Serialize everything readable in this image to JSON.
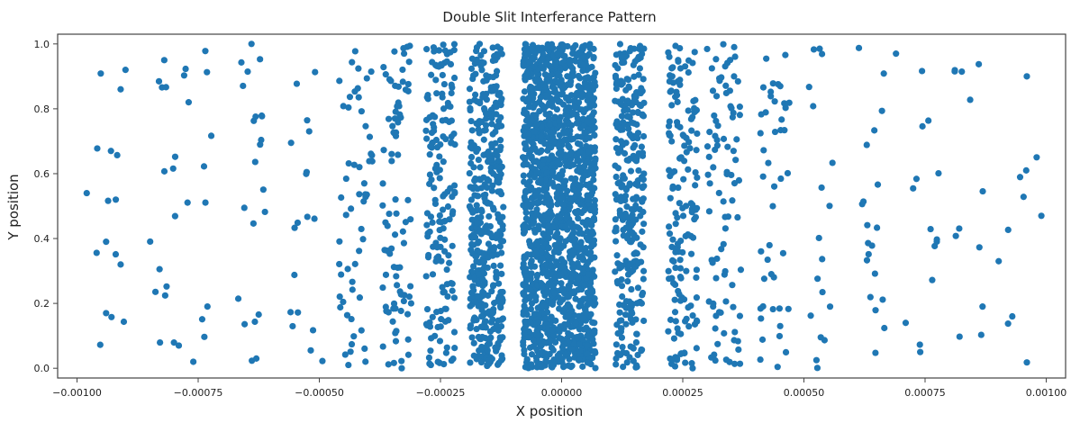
{
  "chart_data": {
    "type": "scatter",
    "title": "Double Slit Interferance Pattern",
    "xlabel": "X position",
    "ylabel": "Y position",
    "xlim": [
      -0.00104,
      0.00104
    ],
    "ylim": [
      -0.03,
      1.03
    ],
    "x_ticks": [
      -0.001,
      -0.00075,
      -0.0005,
      -0.00025,
      0.0,
      0.00025,
      0.0005,
      0.00075,
      0.001
    ],
    "x_tick_labels": [
      "−0.00100",
      "−0.00075",
      "−0.00050",
      "−0.00025",
      "0.00000",
      "0.00025",
      "0.00050",
      "0.00075",
      "0.00100"
    ],
    "y_ticks": [
      0.0,
      0.2,
      0.4,
      0.6,
      0.8,
      1.0
    ],
    "y_tick_labels": [
      "0.0",
      "0.2",
      "0.4",
      "0.6",
      "0.8",
      "1.0"
    ],
    "grid": false,
    "legend": "none",
    "series": [
      {
        "color": "#1f77b4",
        "bands": [
          {
            "x_min": -8e-05,
            "x_max": 7e-05,
            "count": 1500
          },
          {
            "x_min": -0.00019,
            "x_max": -0.00012,
            "count": 420
          },
          {
            "x_min": 0.00011,
            "x_max": 0.00017,
            "count": 300
          },
          {
            "x_min": -0.00028,
            "x_max": -0.00022,
            "count": 170
          },
          {
            "x_min": 0.00022,
            "x_max": 0.00028,
            "count": 160
          },
          {
            "x_min": -0.00037,
            "x_max": -0.00031,
            "count": 85
          },
          {
            "x_min": 0.0003,
            "x_max": 0.00037,
            "count": 90
          },
          {
            "x_min": -0.00046,
            "x_max": -0.00039,
            "count": 55
          },
          {
            "x_min": 0.00041,
            "x_max": 0.00047,
            "count": 45
          },
          {
            "x_min": -0.00056,
            "x_max": -0.00049,
            "count": 18
          },
          {
            "x_min": 0.00051,
            "x_max": 0.00056,
            "count": 18
          },
          {
            "x_min": -0.00067,
            "x_max": -0.00061,
            "count": 20
          },
          {
            "x_min": 0.00061,
            "x_max": 0.00067,
            "count": 20
          },
          {
            "x_min": -0.00078,
            "x_max": -0.00071,
            "count": 12
          },
          {
            "x_min": 0.00071,
            "x_max": 0.00078,
            "count": 12
          },
          {
            "x_min": -0.00085,
            "x_max": -0.00079,
            "count": 14
          },
          {
            "x_min": 0.00081,
            "x_max": 0.00087,
            "count": 12
          },
          {
            "x_min": -0.00096,
            "x_max": -0.00089,
            "count": 9
          },
          {
            "x_min": 0.0009,
            "x_max": 0.00099,
            "count": 8
          }
        ],
        "points": [
          {
            "x": -0.00098,
            "y": 0.54
          },
          {
            "x": -0.00094,
            "y": 0.39
          },
          {
            "x": -0.00094,
            "y": 0.17
          },
          {
            "x": -0.00093,
            "y": 0.67
          },
          {
            "x": -0.00092,
            "y": 0.52
          },
          {
            "x": -0.00091,
            "y": 0.32
          },
          {
            "x": -0.00091,
            "y": 0.86
          },
          {
            "x": -0.0009,
            "y": 0.92
          },
          {
            "x": -0.00082,
            "y": 0.95
          },
          {
            "x": -0.00079,
            "y": 0.07
          },
          {
            "x": -0.00076,
            "y": 0.02
          },
          {
            "x": 0.00093,
            "y": 0.16
          },
          {
            "x": 0.00096,
            "y": 0.9
          },
          {
            "x": 0.00099,
            "y": 0.47
          },
          {
            "x": 0.00074,
            "y": 0.05
          },
          {
            "x": 0.00071,
            "y": 0.14
          },
          {
            "x": 0.00069,
            "y": 0.97
          },
          {
            "x": -0.00064,
            "y": 1.0
          },
          {
            "x": -0.00063,
            "y": 0.03
          },
          {
            "x": -0.00044,
            "y": 0.01
          },
          {
            "x": -0.00033,
            "y": 0.0
          }
        ]
      }
    ]
  }
}
